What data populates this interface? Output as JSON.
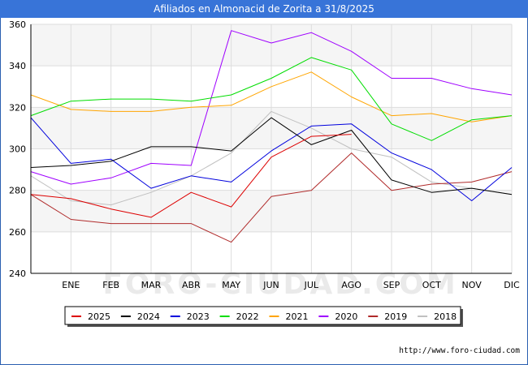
{
  "title": "Afiliados en Almonacid de Zorita a 31/8/2025",
  "source": "http://www.foro-ciudad.com",
  "watermark": "FORO-CIUDAD.COM",
  "chart_data": {
    "type": "line",
    "categories": [
      "",
      "ENE",
      "FEB",
      "MAR",
      "ABR",
      "MAY",
      "JUN",
      "JUL",
      "AGO",
      "SEP",
      "OCT",
      "NOV",
      "DIC"
    ],
    "ylim": [
      240,
      360
    ],
    "yticks": [
      240,
      260,
      280,
      300,
      320,
      340,
      360
    ],
    "grid": true,
    "legend_position": "bottom",
    "series": [
      {
        "name": "2025",
        "color": "#dd0000",
        "values": [
          278,
          276,
          271,
          267,
          279,
          272,
          296,
          306,
          307,
          null,
          null,
          null,
          null
        ]
      },
      {
        "name": "2024",
        "color": "#000000",
        "values": [
          291,
          292,
          294,
          301,
          301,
          299,
          315,
          302,
          309,
          285,
          279,
          281,
          278
        ]
      },
      {
        "name": "2023",
        "color": "#0000dd",
        "values": [
          315,
          293,
          295,
          281,
          287,
          284,
          299,
          311,
          312,
          298,
          290,
          275,
          291
        ]
      },
      {
        "name": "2022",
        "color": "#00dd00",
        "values": [
          316,
          323,
          324,
          324,
          323,
          326,
          334,
          344,
          338,
          312,
          304,
          314,
          316
        ]
      },
      {
        "name": "2021",
        "color": "#ffa500",
        "values": [
          326,
          319,
          318,
          318,
          320,
          321,
          330,
          337,
          325,
          316,
          317,
          313,
          316
        ]
      },
      {
        "name": "2020",
        "color": "#9f00ff",
        "values": [
          289,
          283,
          286,
          293,
          292,
          357,
          351,
          356,
          347,
          334,
          334,
          329,
          326
        ]
      },
      {
        "name": "2019",
        "color": "#b02a2a",
        "values": [
          278,
          266,
          264,
          264,
          264,
          255,
          277,
          280,
          298,
          280,
          283,
          284,
          289
        ]
      },
      {
        "name": "2018",
        "color": "#c0c0c0",
        "values": [
          287,
          275,
          273,
          279,
          287,
          298,
          318,
          310,
          300,
          296,
          284,
          281,
          278
        ]
      }
    ]
  }
}
